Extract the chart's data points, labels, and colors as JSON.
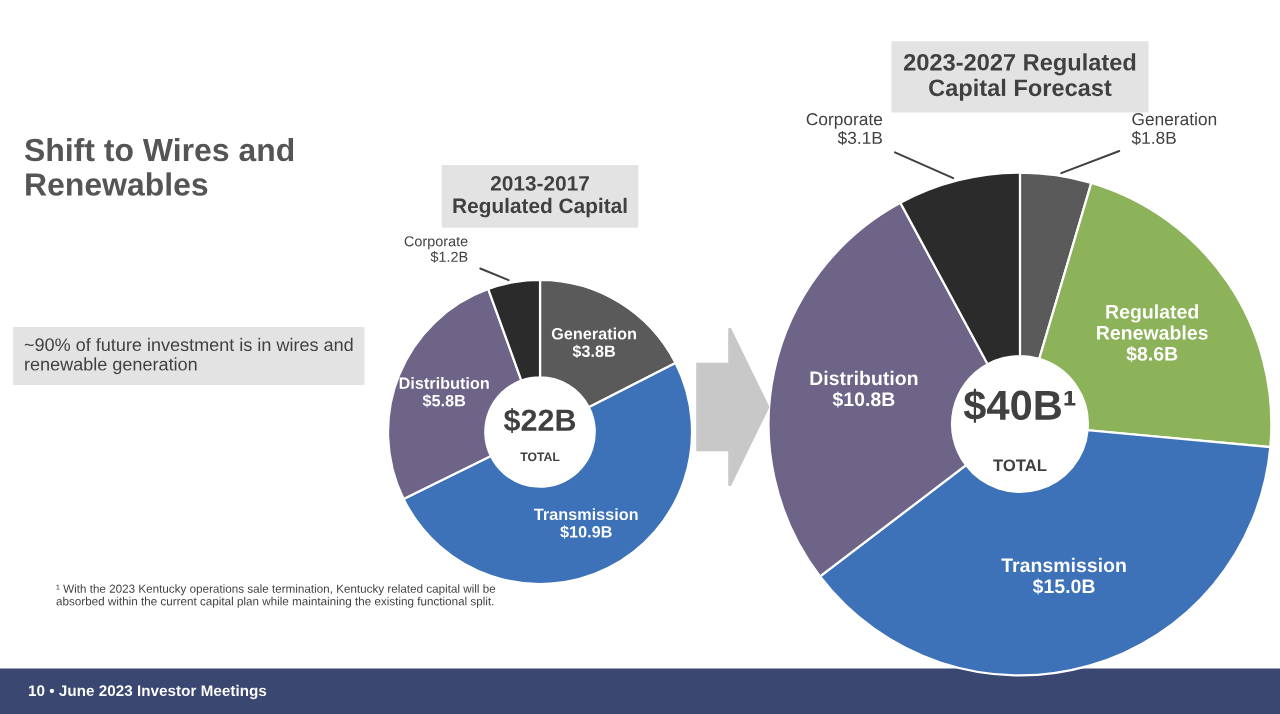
{
  "chart_data": [
    {
      "type": "donut",
      "title": "2013-2017 Regulated Capital",
      "categories": [
        "Generation",
        "Transmission",
        "Distribution",
        "Corporate"
      ],
      "values": [
        3.8,
        10.9,
        5.8,
        1.2
      ],
      "value_labels": [
        "$3.8B",
        "$10.9B",
        "$5.8B",
        "$1.2B"
      ],
      "colors": [
        "#5a5a5a",
        "#3d72b8",
        "#6e6488",
        "#2b2b2b"
      ],
      "annotations": [
        "$22B",
        "TOTAL",
        "Shift to Wires and Renewables",
        "~90% of future investment is in wires and renewable generation",
        "¹ With the 2023 Kentucky operations sale termination, Kentucky related capital will be absorbed within the current capital plan while maintaining the existing functional split.",
        "10 • June 2023 Investor Meetings"
      ],
      "legend": false
    },
    {
      "type": "donut",
      "title": "2023-2027 Regulated Capital Forecast",
      "categories": [
        "Generation",
        "Regulated Renewables",
        "Transmission",
        "Distribution",
        "Corporate"
      ],
      "values": [
        1.8,
        8.6,
        15.0,
        10.8,
        3.1
      ],
      "value_labels": [
        "$1.8B",
        "$8.6B",
        "$15.0B",
        "$10.8B",
        "$3.1B"
      ],
      "colors": [
        "#5a5a5a",
        "#8db35a",
        "#3d72b8",
        "#6e6488",
        "#2b2b2b"
      ],
      "annotations": [
        "$40B¹",
        "TOTAL"
      ],
      "legend": false
    }
  ]
}
